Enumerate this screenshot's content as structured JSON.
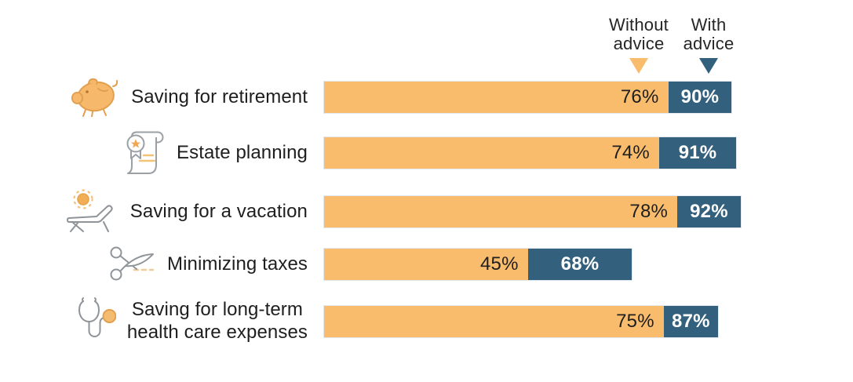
{
  "legend": {
    "without_line1": "Without",
    "without_line2": "advice",
    "with_line1": "With",
    "with_line2": "advice"
  },
  "chart_data": {
    "type": "bar",
    "orientation": "horizontal",
    "title": "",
    "categories": [
      "Saving for retirement",
      "Estate planning",
      "Saving for a vacation",
      "Minimizing taxes",
      "Saving for long-term\nhealth care expenses"
    ],
    "icons": [
      "piggy-bank-icon",
      "scroll-certificate-icon",
      "lounge-chair-sun-icon",
      "scissors-icon",
      "stethoscope-icon"
    ],
    "series": [
      {
        "name": "Without advice",
        "color": "#F9BC6D",
        "values": [
          76,
          74,
          78,
          45,
          75
        ]
      },
      {
        "name": "With advice",
        "color": "#33607D",
        "values": [
          90,
          91,
          92,
          68,
          87
        ]
      }
    ],
    "value_suffix": "%",
    "xlim": [
      0,
      100
    ],
    "grid": false,
    "legend_position": "top-right",
    "value_label_colors": {
      "without": "#1e1e1e",
      "with": "#ffffff"
    }
  }
}
